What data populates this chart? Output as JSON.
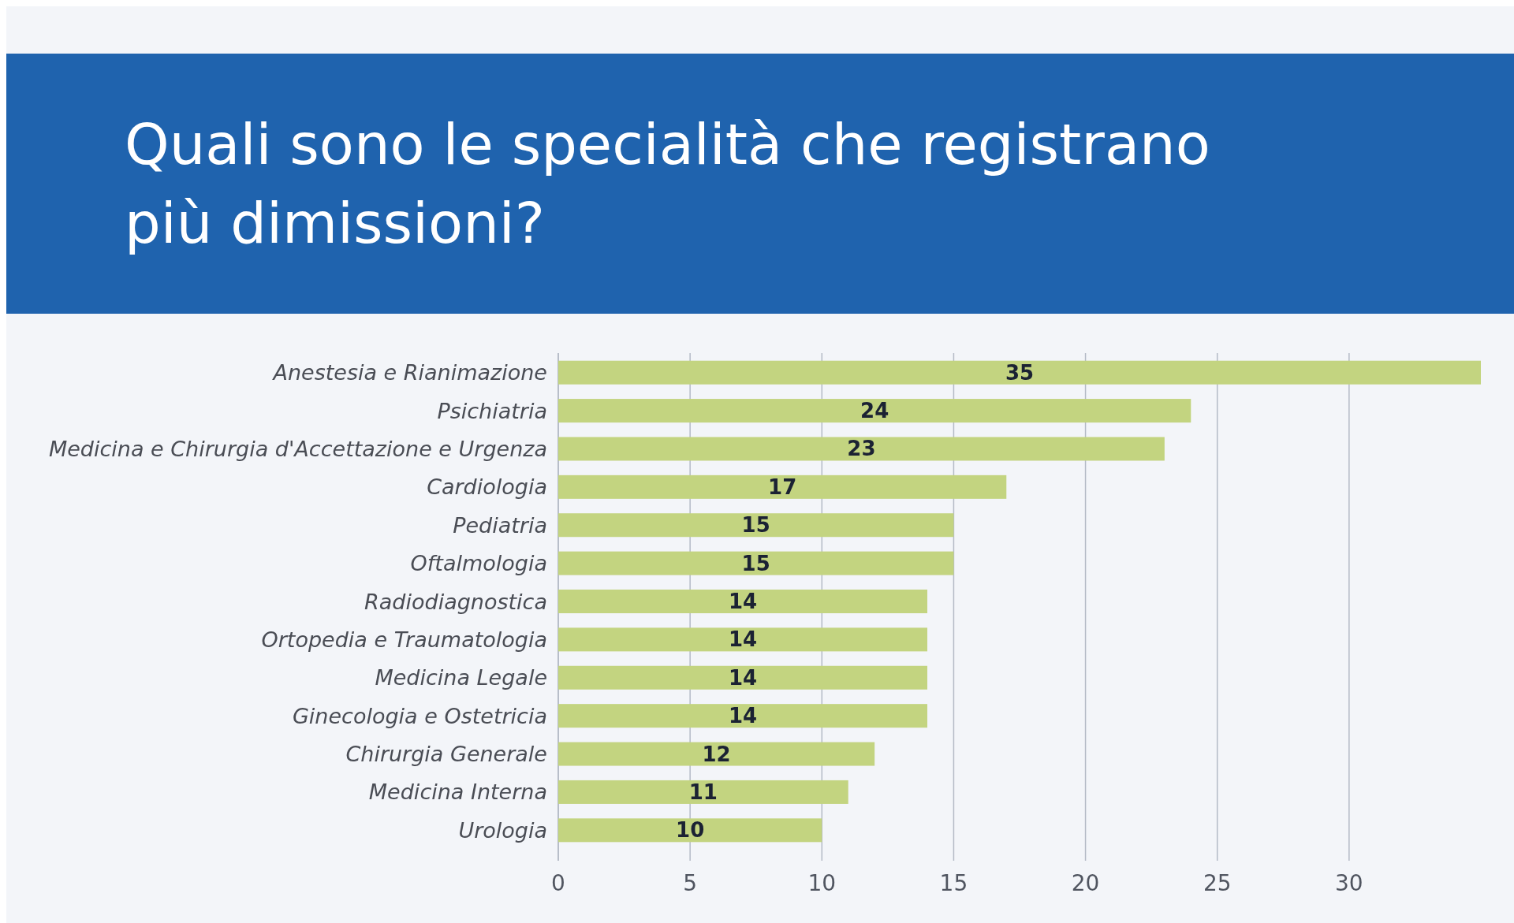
{
  "chart_data": {
    "type": "bar",
    "orientation": "horizontal",
    "title": "Quali sono le specialità che registrano più dimissioni?",
    "categories": [
      "Anestesia e Rianimazione",
      "Psichiatria",
      "Medicina e Chirurgia d'Accettazione e Urgenza",
      "Cardiologia",
      "Pediatria",
      "Oftalmologia",
      "Radiodiagnostica",
      "Ortopedia e Traumatologia",
      "Medicina Legale",
      "Ginecologia e Ostetricia",
      "Chirurgia Generale",
      "Medicina Interna",
      "Urologia"
    ],
    "values": [
      35,
      24,
      23,
      17,
      15,
      15,
      14,
      14,
      14,
      14,
      12,
      11,
      10
    ],
    "color": "#c3d480",
    "xlim": [
      0,
      35
    ],
    "xticks": [
      0,
      5,
      10,
      15,
      20,
      25,
      30
    ],
    "grid": "x",
    "data_labels": true
  }
}
